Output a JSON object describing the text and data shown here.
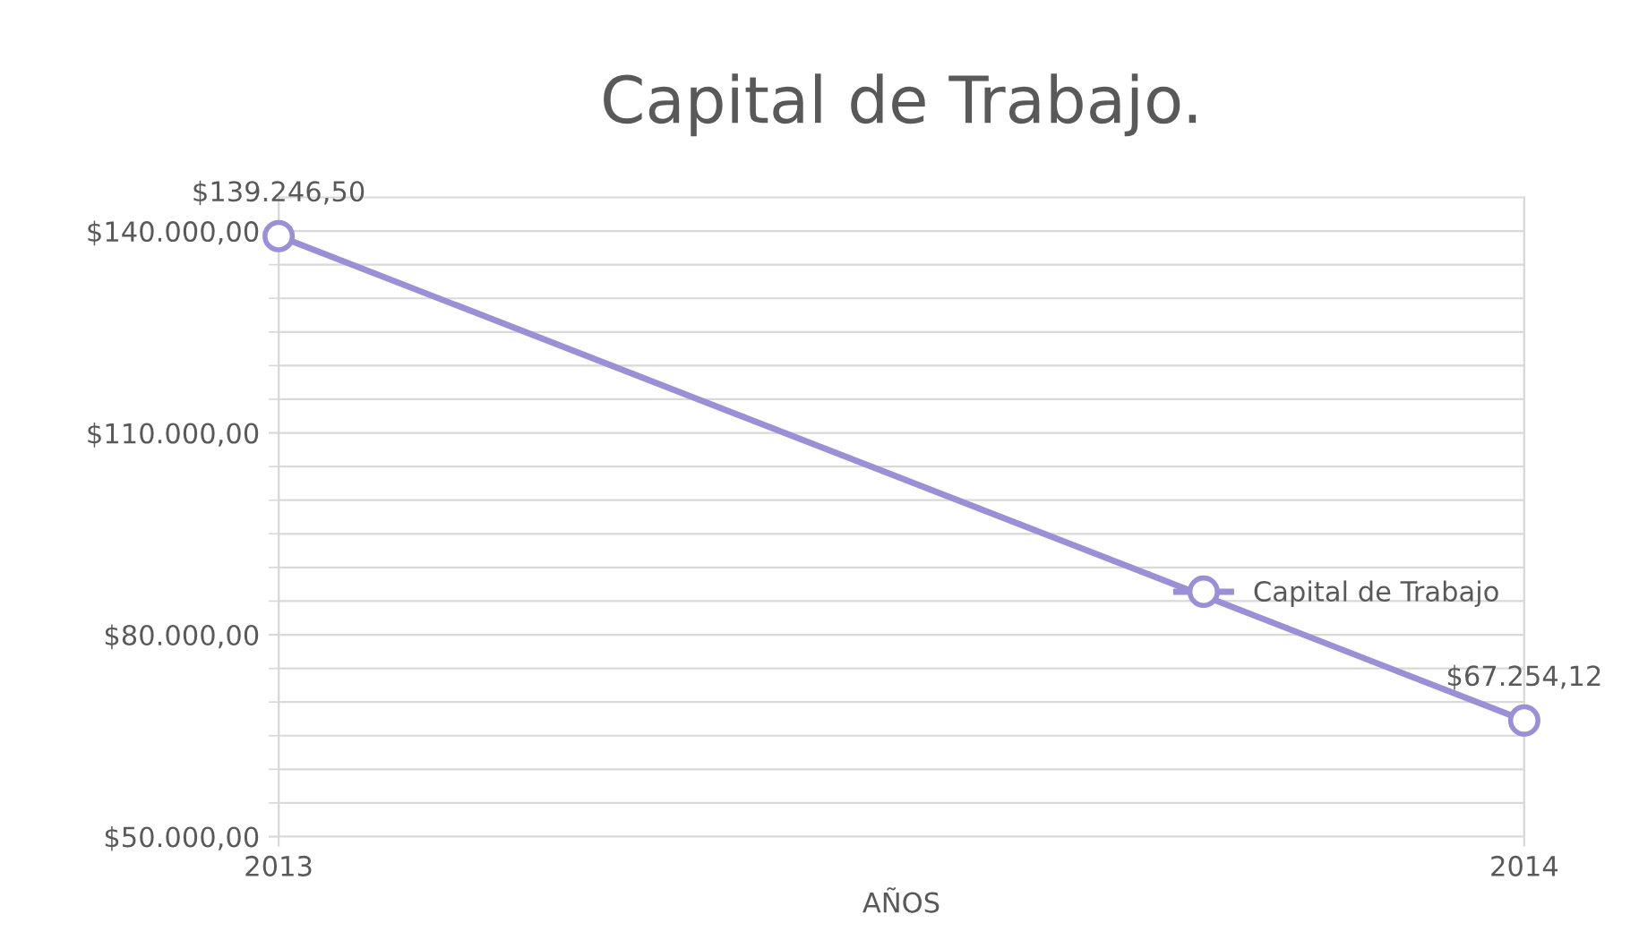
{
  "chart_data": {
    "type": "line",
    "title": "Capital de Trabajo.",
    "xlabel": "AÑOS",
    "x": [
      2013,
      2014
    ],
    "xlim": [
      2013,
      2014
    ],
    "xticks": [
      2013,
      2014
    ],
    "series": [
      {
        "name": "Capital de Trabajo",
        "color": "#9b8fd6",
        "values": [
          139246.5,
          67254.12
        ],
        "value_labels": [
          "$139.246,50",
          "$67.254,12"
        ]
      }
    ],
    "ylim": [
      50000,
      145000
    ],
    "yticks": [
      {
        "value": 50000,
        "label": "$50.000,00"
      },
      {
        "value": 55000,
        "label": null
      },
      {
        "value": 60000,
        "label": null
      },
      {
        "value": 65000,
        "label": null
      },
      {
        "value": 70000,
        "label": null
      },
      {
        "value": 75000,
        "label": null
      },
      {
        "value": 80000,
        "label": "$80.000,00"
      },
      {
        "value": 85000,
        "label": null
      },
      {
        "value": 90000,
        "label": null
      },
      {
        "value": 95000,
        "label": null
      },
      {
        "value": 100000,
        "label": null
      },
      {
        "value": 105000,
        "label": null
      },
      {
        "value": 110000,
        "label": "$110.000,00"
      },
      {
        "value": 115000,
        "label": null
      },
      {
        "value": 120000,
        "label": null
      },
      {
        "value": 125000,
        "label": null
      },
      {
        "value": 130000,
        "label": null
      },
      {
        "value": 135000,
        "label": null
      },
      {
        "value": 140000,
        "label": "$140.000,00"
      }
    ],
    "grid": true,
    "legend": "right",
    "marker": "circle",
    "line_style": "solid"
  }
}
